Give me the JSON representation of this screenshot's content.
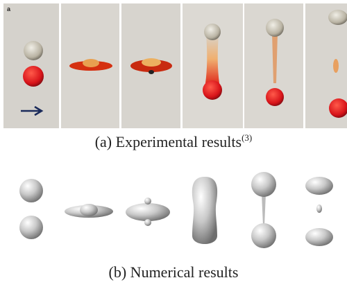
{
  "panel_a": {
    "label": "a",
    "caption": {
      "text": "(a)  Experimental results",
      "ref": "(3)"
    }
  },
  "panel_b": {
    "caption": {
      "text": "(b)  Numerical results"
    }
  }
}
